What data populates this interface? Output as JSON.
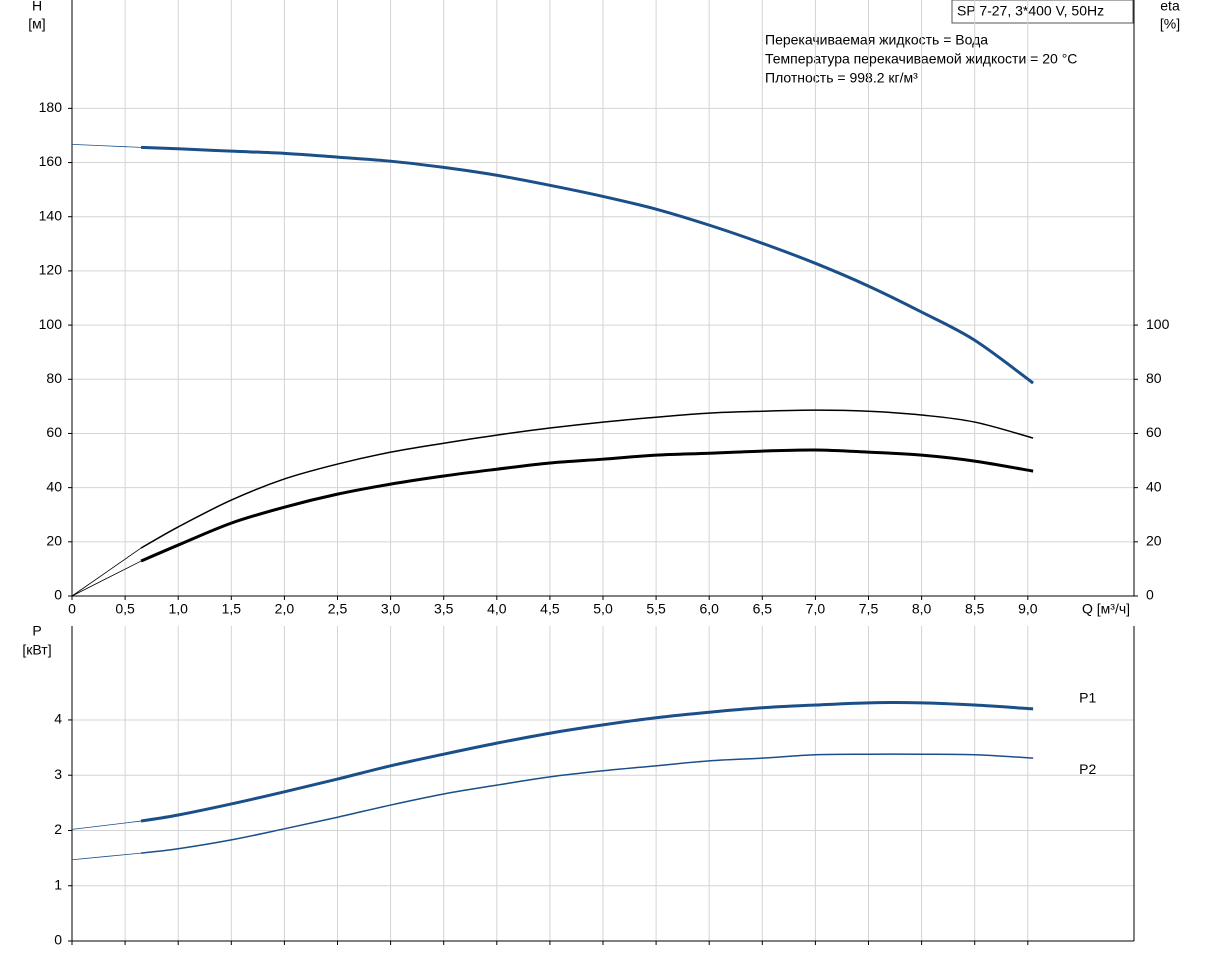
{
  "chart_data": [
    {
      "type": "line",
      "title": "SP 7-27, 3*400 V, 50Hz",
      "annotations": [
        "Перекачиваемая жидкость = Вода",
        "Температура перекачиваемой жидкости = 20 °C",
        "Плотность = 998.2 кг/м³"
      ],
      "y_label": "H",
      "y_unit": "[м]",
      "y2_label": "eta",
      "y2_unit": "[%]",
      "x_label": "Q [м³/ч]",
      "xlim": [
        0,
        10
      ],
      "xticks": [
        0,
        {
          "value": 0.5,
          "label": "0,5"
        },
        {
          "value": 1,
          "label": "1,0"
        },
        {
          "value": 1.5,
          "label": "1,5"
        },
        {
          "value": 2,
          "label": "2,0"
        },
        {
          "value": 2.5,
          "label": "2,5"
        },
        {
          "value": 3,
          "label": "3,0"
        },
        {
          "value": 3.5,
          "label": "3,5"
        },
        {
          "value": 4,
          "label": "4,0"
        },
        {
          "value": 4.5,
          "label": "4,5"
        },
        {
          "value": 5,
          "label": "5,0"
        },
        {
          "value": 5.5,
          "label": "5,5"
        },
        {
          "value": 6,
          "label": "6,0"
        },
        {
          "value": 6.5,
          "label": "6,5"
        },
        {
          "value": 7,
          "label": "7,0"
        },
        {
          "value": 7.5,
          "label": "7,5"
        },
        {
          "value": 8,
          "label": "8,0"
        },
        {
          "value": 8.5,
          "label": "8,5"
        },
        {
          "value": 9,
          "label": "9,0"
        }
      ],
      "ylim": [
        0,
        220
      ],
      "yticks": [
        0,
        20,
        40,
        60,
        80,
        100,
        120,
        140,
        160,
        180
      ],
      "y2lim": [
        0,
        220
      ],
      "y2ticks": [
        0,
        20,
        40,
        60,
        80,
        100
      ],
      "grid": true,
      "series": [
        {
          "color": "#1a4f8a",
          "width": 0.8,
          "x": [
            0,
            0.65
          ],
          "values": [
            166.7,
            165.6
          ]
        },
        {
          "color": "#1a4f8a",
          "width": 3,
          "x": [
            0.65,
            1,
            1.5,
            2,
            2.5,
            3,
            3.5,
            4,
            4.5,
            5,
            5.5,
            6,
            6.5,
            7,
            7.5,
            8,
            8.5,
            9.05
          ],
          "values": [
            165.6,
            165.1,
            164.2,
            163.4,
            162.0,
            160.5,
            158.2,
            155.3,
            151.6,
            147.5,
            142.8,
            136.9,
            130.2,
            122.8,
            114.4,
            104.8,
            94.4,
            78.6
          ]
        },
        {
          "color": "#000000",
          "width": 0.8,
          "axis": "y2",
          "x": [
            0,
            0.65
          ],
          "values": [
            0,
            17.7
          ]
        },
        {
          "color": "#000000",
          "width": 1.5,
          "axis": "y2",
          "x": [
            0.65,
            1,
            1.5,
            2,
            2.5,
            3,
            3.5,
            4,
            4.5,
            5,
            5.5,
            6,
            6.5,
            7,
            7.5,
            8,
            8.5,
            9.05
          ],
          "values": [
            17.7,
            25.5,
            35.4,
            43.2,
            48.7,
            53.1,
            56.4,
            59.4,
            62.0,
            64.2,
            66.0,
            67.5,
            68.2,
            68.6,
            68.2,
            66.8,
            64.2,
            58.3
          ]
        },
        {
          "color": "#000000",
          "width": 0.8,
          "axis": "y2",
          "x": [
            0,
            0.65
          ],
          "values": [
            0,
            12.9
          ]
        },
        {
          "color": "#000000",
          "width": 3,
          "axis": "y2",
          "x": [
            0.65,
            1,
            1.5,
            2,
            2.5,
            3,
            3.5,
            4,
            4.5,
            5,
            5.5,
            6,
            6.5,
            7,
            7.5,
            8,
            8.5,
            9.05
          ],
          "values": [
            12.9,
            18.8,
            26.9,
            32.8,
            37.6,
            41.3,
            44.3,
            46.8,
            49.1,
            50.5,
            52.0,
            52.7,
            53.5,
            53.9,
            53.1,
            52.0,
            49.8,
            46.1
          ]
        }
      ]
    },
    {
      "type": "line",
      "y_label": "P",
      "y_unit": "[кВт]",
      "xlim": [
        0,
        10
      ],
      "xticks": [
        0,
        0.5,
        1,
        1.5,
        2,
        2.5,
        3,
        3.5,
        4,
        4.5,
        5,
        5.5,
        6,
        6.5,
        7,
        7.5,
        8,
        8.5,
        9
      ],
      "x_tick_labels": false,
      "ylim": [
        0,
        5.7
      ],
      "yticks": [
        0,
        1,
        2,
        3,
        4
      ],
      "grid": true,
      "series": [
        {
          "color": "#1a4f8a",
          "width": 0.8,
          "x": [
            0,
            0.65
          ],
          "values": [
            2.02,
            2.17
          ]
        },
        {
          "name": "P1",
          "color": "#1a4f8a",
          "width": 3,
          "x": [
            0.65,
            1,
            1.5,
            2,
            2.5,
            3,
            3.5,
            4,
            4.5,
            5,
            5.5,
            6,
            6.5,
            7,
            7.5,
            8,
            8.5,
            9.05
          ],
          "values": [
            2.17,
            2.28,
            2.48,
            2.7,
            2.93,
            3.17,
            3.38,
            3.58,
            3.76,
            3.91,
            4.04,
            4.14,
            4.22,
            4.27,
            4.31,
            4.31,
            4.27,
            4.2
          ]
        },
        {
          "color": "#1a4f8a",
          "width": 0.8,
          "x": [
            0,
            0.65
          ],
          "values": [
            1.47,
            1.59
          ]
        },
        {
          "name": "P2",
          "color": "#1a4f8a",
          "width": 1.5,
          "x": [
            0.65,
            1,
            1.5,
            2,
            2.5,
            3,
            3.5,
            4,
            4.5,
            5,
            5.5,
            6,
            6.5,
            7,
            7.5,
            8,
            8.5,
            9.05
          ],
          "values": [
            1.59,
            1.67,
            1.83,
            2.03,
            2.24,
            2.46,
            2.66,
            2.82,
            2.97,
            3.08,
            3.17,
            3.26,
            3.31,
            3.37,
            3.38,
            3.38,
            3.37,
            3.31
          ]
        }
      ]
    }
  ]
}
